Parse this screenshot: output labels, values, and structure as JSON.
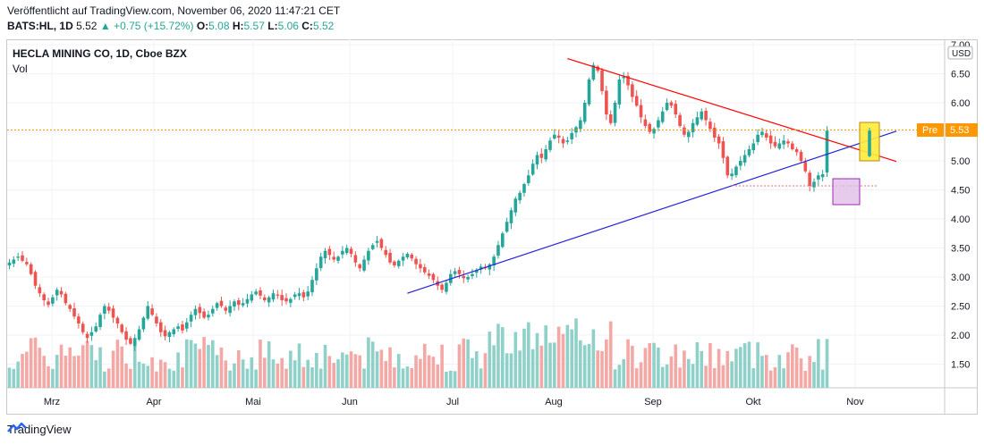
{
  "header": {
    "published": "Veröffentlicht auf TradingView.com, November 06, 2020 11:47:21 CET",
    "symbol": "BATS:HL, 1D",
    "price": "5.52",
    "change": "+0.75 (+15.72%)",
    "o_label": "O:",
    "o_value": "5.08",
    "h_label": "H:",
    "h_value": "5.57",
    "l_label": "L:",
    "l_value": "5.06",
    "c_label": "C:",
    "c_value": "5.52"
  },
  "legend": {
    "title": "HECLA MINING CO, 1D, Cboe BZX",
    "volume_label": "Vol"
  },
  "footer": {
    "brand": "TradingView"
  },
  "colors": {
    "up": "#26a69a",
    "down": "#ef5350",
    "resistance": "#ff0000",
    "support": "#2323d6",
    "pre_badge": "#ff9800",
    "highlight_yellow": "#ffeb3b",
    "highlight_purple": "#e1bee7"
  },
  "chart_data": {
    "type": "candlestick",
    "currency": "USD",
    "y_ticks": [
      "7.00",
      "6.50",
      "6.00",
      "5.50",
      "5.00",
      "4.50",
      "4.00",
      "3.50",
      "3.00",
      "2.50",
      "2.00",
      "1.50"
    ],
    "y_range": [
      1.0,
      7.05
    ],
    "x_labels": [
      "Mrz",
      "Apr",
      "Mai",
      "Jun",
      "Jul",
      "Aug",
      "Sep",
      "Okt",
      "Nov"
    ],
    "price_tag": {
      "label": "Pre",
      "value": "5.53"
    },
    "annotations": [
      {
        "type": "trendline",
        "name": "resistance",
        "from": {
          "date": "2020-08-04",
          "price": 6.76
        },
        "to": {
          "date": "2020-11-09",
          "price": 4.99
        }
      },
      {
        "type": "trendline",
        "name": "support",
        "from": {
          "date": "2020-06-19",
          "price": 2.72
        },
        "to": {
          "date": "2020-11-09",
          "price": 5.51
        }
      },
      {
        "type": "horizontal",
        "name": "prev-high",
        "price": 5.53
      },
      {
        "type": "horizontal",
        "name": "prev-low",
        "price": 4.57
      }
    ],
    "closes": [
      3.25,
      3.3,
      3.35,
      3.28,
      3.22,
      3.05,
      2.85,
      2.72,
      2.6,
      2.52,
      2.65,
      2.78,
      2.7,
      2.55,
      2.45,
      2.32,
      2.2,
      2.05,
      1.95,
      2.05,
      2.15,
      2.35,
      2.5,
      2.42,
      2.3,
      2.2,
      2.05,
      1.92,
      1.85,
      1.95,
      2.1,
      2.3,
      2.5,
      2.35,
      2.2,
      2.05,
      1.98,
      2.05,
      2.1,
      2.15,
      2.08,
      2.22,
      2.35,
      2.45,
      2.38,
      2.3,
      2.35,
      2.45,
      2.55,
      2.5,
      2.42,
      2.5,
      2.58,
      2.52,
      2.55,
      2.62,
      2.7,
      2.75,
      2.68,
      2.6,
      2.65,
      2.72,
      2.68,
      2.6,
      2.58,
      2.62,
      2.7,
      2.72,
      2.65,
      2.75,
      2.95,
      3.15,
      3.35,
      3.45,
      3.38,
      3.3,
      3.35,
      3.45,
      3.5,
      3.4,
      3.25,
      3.15,
      3.3,
      3.45,
      3.55,
      3.62,
      3.5,
      3.38,
      3.25,
      3.2,
      3.28,
      3.35,
      3.4,
      3.32,
      3.22,
      3.15,
      3.08,
      3.02,
      2.95,
      2.85,
      2.78,
      2.9,
      3.05,
      3.1,
      3.05,
      2.98,
      3.0,
      3.05,
      3.12,
      3.18,
      3.15,
      3.22,
      3.35,
      3.55,
      3.75,
      3.95,
      4.15,
      4.35,
      4.45,
      4.6,
      4.75,
      4.95,
      5.1,
      5.05,
      5.2,
      5.35,
      5.45,
      5.4,
      5.3,
      5.35,
      5.48,
      5.58,
      5.7,
      6.0,
      6.4,
      6.65,
      6.55,
      6.2,
      5.8,
      5.65,
      6.0,
      6.4,
      6.45,
      6.3,
      6.1,
      5.95,
      5.75,
      5.6,
      5.5,
      5.55,
      5.7,
      5.85,
      6.0,
      5.95,
      5.8,
      5.6,
      5.45,
      5.5,
      5.65,
      5.75,
      5.85,
      5.7,
      5.55,
      5.4,
      5.3,
      5.05,
      4.75,
      4.78,
      4.9,
      5.0,
      5.1,
      5.2,
      5.3,
      5.45,
      5.5,
      5.4,
      5.3,
      5.25,
      5.3,
      5.35,
      5.3,
      5.2,
      5.15,
      5.0,
      4.82,
      4.57,
      4.64,
      4.75,
      4.77,
      5.52
    ]
  }
}
